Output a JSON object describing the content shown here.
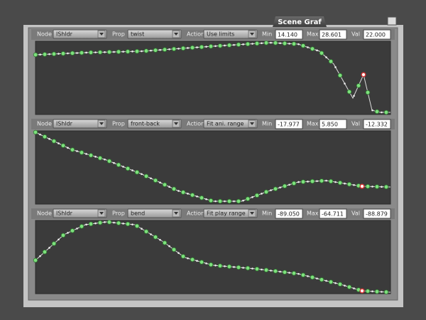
{
  "header": {
    "title": "Scene Graf"
  },
  "panels": [
    {
      "node_label": "Node",
      "node": "lShldr",
      "prop_label": "Prop",
      "prop": "twist",
      "action_label": "Action",
      "action": "Use limits",
      "min_label": "Min",
      "min": "14.140",
      "max_label": "Max",
      "max": "28.601",
      "val_label": "Val",
      "val": "22.000"
    },
    {
      "node_label": "Node",
      "node": "lShldr",
      "prop_label": "Prop",
      "prop": "front-back",
      "action_label": "Action",
      "action": "Fit ani. range",
      "min_label": "Min",
      "min": "-17.977",
      "max_label": "Max",
      "max": "5.850",
      "val_label": "Val",
      "val": "-12.332"
    },
    {
      "node_label": "Node",
      "node": "lShldr",
      "prop_label": "Prop",
      "prop": "bend",
      "action_label": "Action",
      "action": "Fit play range",
      "min_label": "Min",
      "min": "-89.050",
      "max_label": "Max",
      "max": "-64.711",
      "val_label": "Val",
      "val": "-88.879"
    }
  ]
}
